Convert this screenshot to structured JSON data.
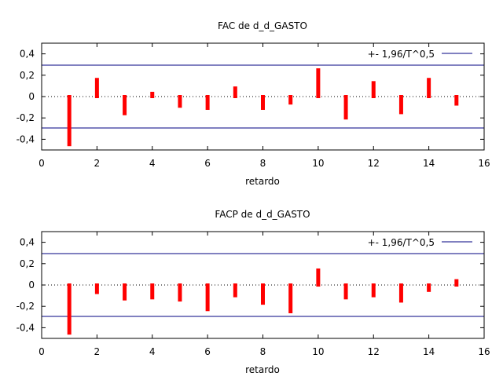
{
  "chart_data": [
    {
      "type": "bar",
      "title": "FAC de d_d_GASTO",
      "xlabel": "retardo",
      "ylabel": "",
      "xlim": [
        0,
        16
      ],
      "ylim": [
        -0.5,
        0.5
      ],
      "x_ticks": [
        0,
        2,
        4,
        6,
        8,
        10,
        12,
        14,
        16
      ],
      "y_ticks": [
        -0.4,
        -0.2,
        0,
        0.2,
        0.4
      ],
      "y_tick_labels": [
        "-0,4",
        "-0,2",
        "0",
        "0,2",
        "0,4"
      ],
      "x": [
        1,
        2,
        3,
        4,
        5,
        6,
        7,
        8,
        9,
        10,
        11,
        12,
        13,
        14,
        15
      ],
      "values": [
        -0.45,
        0.16,
        -0.16,
        0.03,
        -0.09,
        -0.11,
        0.08,
        -0.11,
        -0.06,
        0.25,
        -0.2,
        0.13,
        -0.15,
        0.16,
        -0.07
      ],
      "bound": 0.294,
      "bound_label": "+- 1,96/T^0,5",
      "legend_position": "top-right",
      "bar_color": "#ff0000",
      "bound_color": "#000080",
      "zero_line": "dotted"
    },
    {
      "type": "bar",
      "title": "FACP de d_d_GASTO",
      "xlabel": "retardo",
      "ylabel": "",
      "xlim": [
        0,
        16
      ],
      "ylim": [
        -0.5,
        0.5
      ],
      "x_ticks": [
        0,
        2,
        4,
        6,
        8,
        10,
        12,
        14,
        16
      ],
      "y_ticks": [
        -0.4,
        -0.2,
        0,
        0.2,
        0.4
      ],
      "y_tick_labels": [
        "-0,4",
        "-0,2",
        "0",
        "0,2",
        "0,4"
      ],
      "x": [
        1,
        2,
        3,
        4,
        5,
        6,
        7,
        8,
        9,
        10,
        11,
        12,
        13,
        14,
        15
      ],
      "values": [
        -0.45,
        -0.07,
        -0.13,
        -0.12,
        -0.14,
        -0.23,
        -0.1,
        -0.17,
        -0.25,
        0.14,
        -0.12,
        -0.1,
        -0.15,
        -0.05,
        0.04
      ],
      "bound": 0.294,
      "bound_label": "+- 1,96/T^0,5",
      "legend_position": "top-right",
      "bar_color": "#ff0000",
      "bound_color": "#000080",
      "zero_line": "dotted"
    }
  ]
}
